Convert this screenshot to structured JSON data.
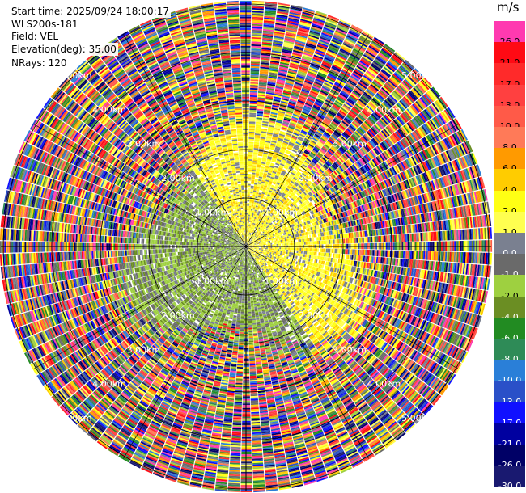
{
  "header": {
    "start_time": "Start time: 2025/09/24 18:00:17",
    "instrument": "WLS200s-181",
    "field": "Field: VEL",
    "elevation": "Elevation(deg): 35.00",
    "nrays": "NRays: 120"
  },
  "colorbar": {
    "unit": "m/s",
    "levels": [
      {
        "label": "26.0",
        "color": "#ff3ab0"
      },
      {
        "label": "21.0",
        "color": "#ff0a14"
      },
      {
        "label": "17.0",
        "color": "#ff2a2a"
      },
      {
        "label": "13.0",
        "color": "#ff4040"
      },
      {
        "label": "10.0",
        "color": "#ff5a48"
      },
      {
        "label": "8.0",
        "color": "#ff7a58"
      },
      {
        "label": "6.0",
        "color": "#ff9a00"
      },
      {
        "label": "4.0",
        "color": "#ffcc00"
      },
      {
        "label": "2.0",
        "color": "#ffff14"
      },
      {
        "label": "1.0",
        "color": "#ffff50"
      },
      {
        "label": "0.0",
        "color": "#7a8090"
      },
      {
        "label": "-1.0",
        "color": "#6a6a6a"
      },
      {
        "label": "-2.0",
        "color": "#9ed040"
      },
      {
        "label": "-4.0",
        "color": "#6b8e23"
      },
      {
        "label": "-6.0",
        "color": "#228b22"
      },
      {
        "label": "-8.0",
        "color": "#2e8b57"
      },
      {
        "label": "-10.0",
        "color": "#2a7fd8"
      },
      {
        "label": "-13.0",
        "color": "#2a50c8"
      },
      {
        "label": "-17.0",
        "color": "#1010ff"
      },
      {
        "label": "-21.0",
        "color": "#0000a0"
      },
      {
        "label": "-26.0",
        "color": "#000066"
      },
      {
        "label": "-30.0",
        "color": "#191970"
      }
    ]
  },
  "chart_data": {
    "type": "heatmap",
    "projection": "polar PPI",
    "field": "VEL",
    "rays": 120,
    "range_rings": [
      {
        "label": "1.00km",
        "range_km": 1
      },
      {
        "label": "2.00km",
        "range_km": 2
      },
      {
        "label": "3.00km",
        "range_km": 3
      },
      {
        "label": "4.00km",
        "range_km": 4
      },
      {
        "label": "5.00km",
        "range_km": 5
      }
    ],
    "max_range_km": 5.05,
    "data_regions": [
      {
        "description": "near range, north-east half",
        "range_km": [
          0.2,
          2.4
        ],
        "velocity_ms": [
          1.0,
          4.0
        ]
      },
      {
        "description": "near range, south-west half",
        "range_km": [
          0.2,
          2.4
        ],
        "velocity_ms": [
          -4.0,
          -1.0
        ]
      },
      {
        "description": "far range, noise",
        "range_km": [
          2.4,
          5.05
        ],
        "velocity_ms": [
          -30.0,
          26.0
        ]
      }
    ]
  }
}
